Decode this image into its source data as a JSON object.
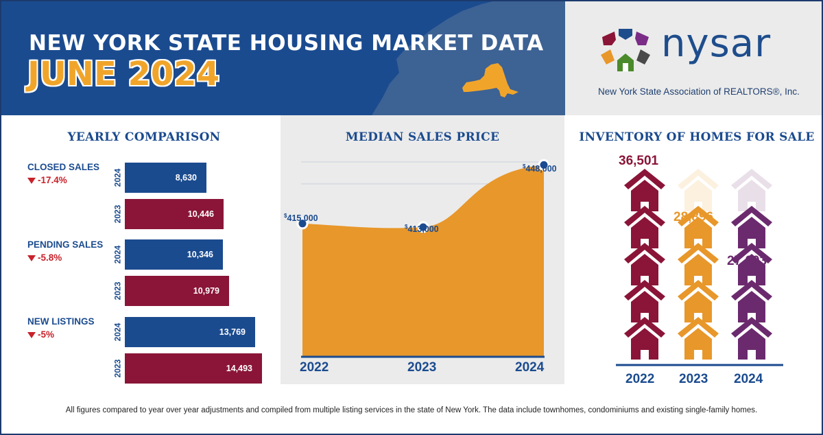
{
  "header": {
    "title_line1": "NEW YORK STATE HOUSING MARKET DATA",
    "title_line2": "JUNE 2024"
  },
  "logo": {
    "wordmark": "nysar",
    "subtitle": "New York State Association of REALTORS®, Inc."
  },
  "colors": {
    "navy": "#1b4b8f",
    "maroon": "#8a1538",
    "orange": "#e8972a",
    "purple": "#6b2a6e",
    "decline_red": "#c8222b"
  },
  "yearly_comparison": {
    "title": "YEARLY COMPARISON",
    "groups": [
      {
        "label": "CLOSED SALES",
        "change": "-17.4%",
        "rows": [
          {
            "year": "2024",
            "value": 8630,
            "display": "8,630"
          },
          {
            "year": "2023",
            "value": 10446,
            "display": "10,446"
          }
        ]
      },
      {
        "label": "PENDING SALES",
        "change": "-5.8%",
        "rows": [
          {
            "year": "2024",
            "value": 10346,
            "display": "10,346"
          },
          {
            "year": "2023",
            "value": 10979,
            "display": "10,979"
          }
        ]
      },
      {
        "label": "NEW LISTINGS",
        "change": "-5%",
        "rows": [
          {
            "year": "2024",
            "value": 13769,
            "display": "13,769"
          },
          {
            "year": "2023",
            "value": 14493,
            "display": "14,493"
          }
        ]
      }
    ]
  },
  "median_sales_price": {
    "title": "MEDIAN SALES PRICE",
    "labels": [
      "415,000",
      "413,000",
      "448,000"
    ],
    "currency": "$"
  },
  "inventory": {
    "title": "INVENTORY OF HOMES FOR SALE",
    "labels": [
      "36,501",
      "28,896",
      "27,603"
    ]
  },
  "footnote": "All figures compared to year over year adjustments and compiled from multiple listing services in the state of New York.  The data include townhomes, condominiums and existing single-family homes.",
  "chart_data": [
    {
      "type": "bar",
      "title": "YEARLY COMPARISON",
      "categories": [
        "CLOSED SALES",
        "PENDING SALES",
        "NEW LISTINGS"
      ],
      "series": [
        {
          "name": "2024",
          "values": [
            8630,
            10346,
            13769
          ]
        },
        {
          "name": "2023",
          "values": [
            10446,
            10979,
            14493
          ]
        }
      ],
      "orientation": "horizontal"
    },
    {
      "type": "area",
      "title": "MEDIAN SALES PRICE",
      "x": [
        "2022",
        "2023",
        "2024"
      ],
      "values": [
        415000,
        413000,
        448000
      ]
    },
    {
      "type": "bar",
      "title": "INVENTORY OF HOMES FOR SALE",
      "categories": [
        "2022",
        "2023",
        "2024"
      ],
      "values": [
        36501,
        28896,
        27603
      ]
    }
  ]
}
